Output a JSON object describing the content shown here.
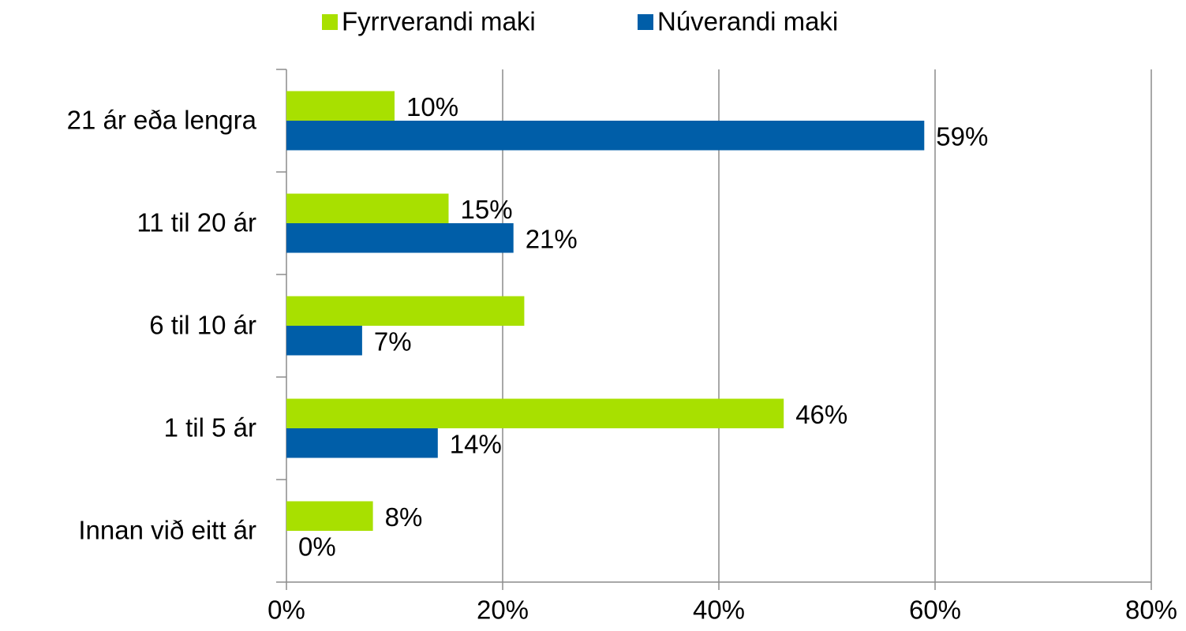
{
  "chart_data": {
    "type": "bar",
    "orientation": "horizontal",
    "categories": [
      "21 ár eða lengra",
      "11 til 20 ár",
      "6 til 10 ár",
      "1 til 5 ár",
      "Innan við eitt ár"
    ],
    "series": [
      {
        "name": "Fyrrverandi maki",
        "color": "#a8e000",
        "values": [
          10,
          15,
          22,
          46,
          8
        ],
        "value_labels": [
          "10%",
          "15%",
          null,
          "46%",
          "8%"
        ]
      },
      {
        "name": "Núverandi maki",
        "color": "#005ea8",
        "values": [
          59,
          21,
          7,
          14,
          0
        ],
        "value_labels": [
          "59%",
          "21%",
          "7%",
          "14%",
          "0%"
        ]
      }
    ],
    "xlim": [
      0,
      80
    ],
    "xticks": [
      {
        "value": 0,
        "label": "0%"
      },
      {
        "value": 20,
        "label": "20%"
      },
      {
        "value": 40,
        "label": "40%"
      },
      {
        "value": 60,
        "label": "60%"
      },
      {
        "value": 80,
        "label": "80%"
      }
    ],
    "grid": true,
    "legend": "top"
  }
}
